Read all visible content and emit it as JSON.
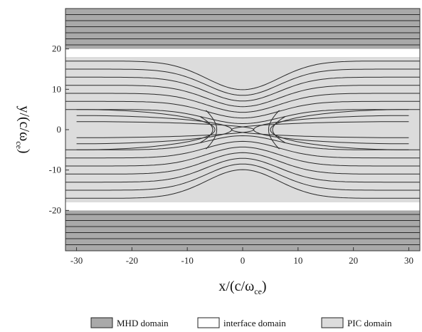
{
  "chart_data": {
    "type": "contour",
    "xlabel": {
      "main": "x/(c/ω",
      "sub": "ce",
      "end": ")"
    },
    "ylabel": {
      "main": "y/(c/ω",
      "sub": "ce",
      "end": ")"
    },
    "xlim": [
      -32,
      32
    ],
    "ylim": [
      -30,
      30
    ],
    "x_ticks": [
      -30,
      -20,
      -10,
      0,
      10,
      20,
      30
    ],
    "y_ticks": [
      -20,
      -10,
      0,
      10,
      20
    ],
    "grid": false,
    "legend_position": "bottom",
    "regions": [
      {
        "name": "MHD domain",
        "y_ranges": [
          [
            -30,
            -20
          ],
          [
            20,
            30
          ]
        ],
        "color": "#a9a9a9"
      },
      {
        "name": "interface domain",
        "y_ranges": [
          [
            -20,
            -18
          ],
          [
            18,
            20
          ]
        ],
        "color": "#ffffff"
      },
      {
        "name": "PIC domain",
        "y_ranges": [
          [
            -18,
            18
          ]
        ],
        "color": "#dcdcdc"
      }
    ],
    "contour": {
      "description": "magnetic flux contours around an X-point at (0,0)",
      "x_point": [
        0,
        0
      ],
      "o_points": [
        [
          -30,
          0
        ],
        [
          30,
          0
        ]
      ],
      "outer_levels_y": [
        21,
        22.5,
        24,
        25.5,
        27,
        28.5
      ],
      "inner_levels_y": [
        5,
        7,
        9,
        11,
        13,
        15,
        17
      ]
    }
  },
  "legend": [
    {
      "label": "MHD domain",
      "swatch": "#a9a9a9"
    },
    {
      "label": "interface domain",
      "swatch": "#ffffff"
    },
    {
      "label": "PIC domain",
      "swatch": "#dcdcdc"
    }
  ]
}
